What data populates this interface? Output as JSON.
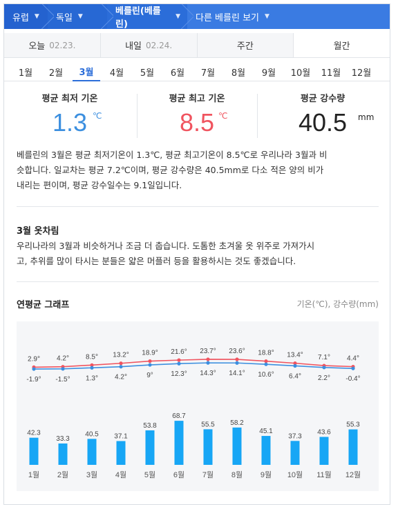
{
  "breadcrumb": [
    {
      "label": "유럽"
    },
    {
      "label": "독일"
    },
    {
      "label": "베를린(베를린)"
    },
    {
      "label": "다른 베를린 보기"
    }
  ],
  "day_tabs": [
    {
      "label": "오늘",
      "date": "02.23."
    },
    {
      "label": "내일",
      "date": "02.24."
    },
    {
      "label": "주간",
      "date": ""
    },
    {
      "label": "월간",
      "date": ""
    }
  ],
  "months": [
    "1월",
    "2월",
    "3월",
    "4월",
    "5월",
    "6월",
    "7월",
    "8월",
    "9월",
    "10월",
    "11월",
    "12월"
  ],
  "selected_month": "3월",
  "stats": {
    "min": {
      "label": "평균 최저 기온",
      "value": "1.3",
      "unit": "℃",
      "color": "#3c8fdf"
    },
    "max": {
      "label": "평균 최고 기온",
      "value": "8.5",
      "unit": "℃",
      "color": "#f0545f"
    },
    "rain": {
      "label": "평균 강수량",
      "value": "40.5",
      "unit": "mm",
      "color": "#222222"
    }
  },
  "summary_lines": [
    "베를린의 3월은 평균 최저기온이 1.3℃, 평균 최고기온이 8.5℃로 우리나라 3월과 비",
    "슷합니다. 일교차는 평균 7.2℃이며, 평균 강수량은 40.5mm로 다소 적은 양의 비가",
    "내리는 편이며, 평균 강수일수는 9.1일입니다."
  ],
  "clothing": {
    "title": "3월 옷차림",
    "lines": [
      "우리나라의 3월과 비슷하거나 조금 더 춥습니다. 도톰한 초겨울 옷 위주로 가져가시",
      "고, 추위를 많이 타시는 분들은 얇은 머플러 등을 활용하시는 것도 좋겠습니다."
    ]
  },
  "graph": {
    "title": "연평균 그래프",
    "legend": "기온(℃), 강수량(mm)"
  },
  "colors": {
    "accent": "#2b6dd9",
    "max_line": "#f0545f",
    "min_line": "#3c8fdf",
    "bar": "#17a6f5"
  },
  "chart_data": {
    "type": "line+bar",
    "categories": [
      "1월",
      "2월",
      "3월",
      "4월",
      "5월",
      "6월",
      "7월",
      "8월",
      "9월",
      "10월",
      "11월",
      "12월"
    ],
    "series": [
      {
        "kind": "line",
        "values": [
          2.9,
          4.2,
          8.5,
          13.2,
          18.9,
          21.6,
          23.7,
          23.6,
          18.8,
          13.4,
          7.1,
          4.4
        ],
        "labels": [
          "2.9°",
          "4.2°",
          "8.5°",
          "13.2°",
          "18.9°",
          "21.6°",
          "23.7°",
          "23.6°",
          "18.8°",
          "13.4°",
          "7.1°",
          "4.4°"
        ]
      },
      {
        "kind": "line",
        "values": [
          -1.9,
          -1.5,
          1.3,
          4.2,
          9,
          12.3,
          14.3,
          14.1,
          10.6,
          6.4,
          2.2,
          -0.4
        ],
        "labels": [
          "-1.9°",
          "-1.5°",
          "1.3°",
          "4.2°",
          "9°",
          "12.3°",
          "14.3°",
          "14.1°",
          "10.6°",
          "6.4°",
          "2.2°",
          "-0.4°"
        ]
      },
      {
        "kind": "bar",
        "values": [
          42.3,
          33.3,
          40.5,
          37.1,
          53.8,
          68.7,
          55.5,
          58.2,
          45.1,
          37.3,
          43.6,
          55.3
        ],
        "labels": [
          "42.3",
          "33.3",
          "40.5",
          "37.1",
          "53.8",
          "68.7",
          "55.5",
          "58.2",
          "45.1",
          "37.3",
          "43.6",
          "55.3"
        ]
      }
    ],
    "grid": false
  }
}
